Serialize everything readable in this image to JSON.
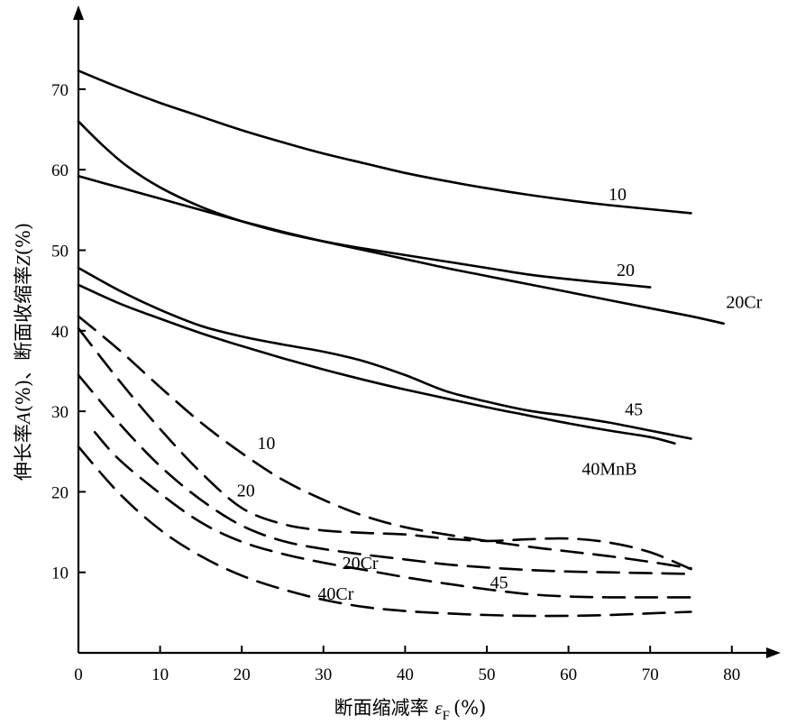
{
  "chart_data": {
    "type": "line",
    "xlabel_text": "断面缩减率 ",
    "xlabel_symbol": "ε",
    "xlabel_sub": "F",
    "xlabel_unit": "(%)",
    "ylabel_a": "伸长率",
    "ylabel_a_sym": "A",
    "ylabel_mid": "(%)、断面收缩率",
    "ylabel_z_sym": "Z",
    "ylabel_end": "(%)",
    "xlim": [
      0,
      85
    ],
    "ylim": [
      0,
      77
    ],
    "x_ticks": [
      0,
      10,
      20,
      30,
      40,
      50,
      60,
      70,
      80
    ],
    "y_ticks": [
      10,
      20,
      30,
      40,
      50,
      60,
      70
    ],
    "grid": false,
    "series": [
      {
        "name": "10",
        "style": "solid",
        "label_at": [
          66,
          57
        ],
        "points": [
          [
            0,
            72.3
          ],
          [
            5,
            70.2
          ],
          [
            10,
            68.3
          ],
          [
            15,
            66.6
          ],
          [
            20,
            64.9
          ],
          [
            25,
            63.4
          ],
          [
            30,
            62.0
          ],
          [
            35,
            60.8
          ],
          [
            40,
            59.6
          ],
          [
            45,
            58.6
          ],
          [
            50,
            57.7
          ],
          [
            55,
            56.9
          ],
          [
            60,
            56.2
          ],
          [
            65,
            55.6
          ],
          [
            70,
            55.1
          ],
          [
            75,
            54.6
          ]
        ]
      },
      {
        "name": "20",
        "style": "solid",
        "label_at": [
          67,
          47.6
        ],
        "points": [
          [
            0,
            66.0
          ],
          [
            3,
            63.0
          ],
          [
            6,
            60.4
          ],
          [
            10,
            57.8
          ],
          [
            15,
            55.4
          ],
          [
            20,
            53.6
          ],
          [
            25,
            52.2
          ],
          [
            30,
            51.1
          ],
          [
            35,
            50.2
          ],
          [
            40,
            49.4
          ],
          [
            45,
            48.6
          ],
          [
            50,
            47.8
          ],
          [
            55,
            47.0
          ],
          [
            60,
            46.4
          ],
          [
            65,
            45.9
          ],
          [
            70,
            45.4
          ]
        ]
      },
      {
        "name": "20Cr",
        "style": "solid",
        "label_at": [
          81.5,
          43.6
        ],
        "points": [
          [
            0,
            59.2
          ],
          [
            5,
            57.8
          ],
          [
            10,
            56.4
          ],
          [
            15,
            55.0
          ],
          [
            20,
            53.6
          ],
          [
            25,
            52.3
          ],
          [
            30,
            51.1
          ],
          [
            35,
            50.0
          ],
          [
            40,
            48.9
          ],
          [
            45,
            47.8
          ],
          [
            50,
            46.8
          ],
          [
            55,
            45.8
          ],
          [
            60,
            44.8
          ],
          [
            65,
            43.8
          ],
          [
            70,
            42.8
          ],
          [
            75,
            41.8
          ],
          [
            79,
            40.9
          ]
        ]
      },
      {
        "name": "45",
        "style": "solid",
        "label_at": [
          68,
          30.3
        ],
        "points": [
          [
            0,
            47.8
          ],
          [
            5,
            45.0
          ],
          [
            10,
            42.6
          ],
          [
            15,
            40.6
          ],
          [
            20,
            39.3
          ],
          [
            25,
            38.3
          ],
          [
            30,
            37.4
          ],
          [
            35,
            36.2
          ],
          [
            40,
            34.5
          ],
          [
            45,
            32.5
          ],
          [
            50,
            31.2
          ],
          [
            55,
            30.1
          ],
          [
            60,
            29.4
          ],
          [
            65,
            28.6
          ],
          [
            70,
            27.6
          ],
          [
            75,
            26.6
          ]
        ]
      },
      {
        "name": "40MnB",
        "style": "solid",
        "label_at": [
          65,
          22.9
        ],
        "points": [
          [
            0,
            45.7
          ],
          [
            5,
            43.4
          ],
          [
            10,
            41.5
          ],
          [
            15,
            39.7
          ],
          [
            20,
            38.1
          ],
          [
            25,
            36.6
          ],
          [
            30,
            35.2
          ],
          [
            35,
            33.9
          ],
          [
            40,
            32.7
          ],
          [
            45,
            31.6
          ],
          [
            50,
            30.5
          ],
          [
            55,
            29.5
          ],
          [
            60,
            28.5
          ],
          [
            65,
            27.6
          ],
          [
            70,
            26.8
          ],
          [
            73,
            26.0
          ]
        ]
      },
      {
        "name": "10",
        "style": "dashed",
        "label_at": [
          23,
          26.1
        ],
        "points": [
          [
            0,
            41.8
          ],
          [
            5,
            37.6
          ],
          [
            10,
            33.0
          ],
          [
            15,
            28.6
          ],
          [
            20,
            24.8
          ],
          [
            25,
            21.5
          ],
          [
            30,
            19.0
          ],
          [
            35,
            17.0
          ],
          [
            40,
            15.6
          ],
          [
            45,
            14.7
          ],
          [
            50,
            13.9
          ],
          [
            55,
            13.2
          ],
          [
            60,
            12.6
          ],
          [
            65,
            12.0
          ],
          [
            70,
            11.3
          ],
          [
            75,
            10.5
          ]
        ]
      },
      {
        "name": "20",
        "style": "dashed",
        "label_at": [
          20.5,
          20.2
        ],
        "points": [
          [
            0,
            40.3
          ],
          [
            5,
            33.8
          ],
          [
            10,
            27.8
          ],
          [
            15,
            22.4
          ],
          [
            20,
            18.0
          ],
          [
            25,
            16.0
          ],
          [
            30,
            15.2
          ],
          [
            35,
            14.9
          ],
          [
            40,
            14.7
          ],
          [
            45,
            14.2
          ],
          [
            50,
            13.9
          ],
          [
            55,
            14.1
          ],
          [
            60,
            14.2
          ],
          [
            65,
            13.7
          ],
          [
            70,
            12.5
          ],
          [
            75,
            10.4
          ]
        ]
      },
      {
        "name": "20Cr",
        "style": "dashed",
        "label_at": [
          34.5,
          11.2
        ],
        "points": [
          [
            0,
            34.5
          ],
          [
            5,
            28.5
          ],
          [
            10,
            23.2
          ],
          [
            15,
            19.0
          ],
          [
            20,
            15.8
          ],
          [
            25,
            13.9
          ],
          [
            30,
            12.9
          ],
          [
            35,
            12.2
          ],
          [
            40,
            11.6
          ],
          [
            45,
            11.0
          ],
          [
            50,
            10.6
          ],
          [
            55,
            10.3
          ],
          [
            60,
            10.1
          ],
          [
            65,
            10.0
          ],
          [
            70,
            9.9
          ],
          [
            75,
            9.8
          ]
        ]
      },
      {
        "name": "45",
        "style": "dashed",
        "label_at": [
          51.5,
          8.8
        ],
        "points": [
          [
            2,
            27.4
          ],
          [
            5,
            24.0
          ],
          [
            10,
            19.8
          ],
          [
            15,
            16.2
          ],
          [
            20,
            13.8
          ],
          [
            25,
            12.3
          ],
          [
            30,
            11.2
          ],
          [
            35,
            10.3
          ],
          [
            40,
            9.4
          ],
          [
            45,
            8.6
          ],
          [
            50,
            7.9
          ],
          [
            55,
            7.3
          ],
          [
            60,
            7.0
          ],
          [
            65,
            6.9
          ],
          [
            70,
            6.9
          ],
          [
            75,
            6.9
          ]
        ]
      },
      {
        "name": "40Cr",
        "style": "dashed",
        "label_at": [
          31.5,
          7.4
        ],
        "points": [
          [
            0,
            25.6
          ],
          [
            5,
            19.8
          ],
          [
            10,
            15.3
          ],
          [
            15,
            12.0
          ],
          [
            20,
            9.6
          ],
          [
            25,
            7.9
          ],
          [
            30,
            6.6
          ],
          [
            35,
            5.7
          ],
          [
            40,
            5.2
          ],
          [
            45,
            4.9
          ],
          [
            50,
            4.7
          ],
          [
            55,
            4.6
          ],
          [
            60,
            4.6
          ],
          [
            65,
            4.7
          ],
          [
            70,
            4.9
          ],
          [
            75,
            5.1
          ]
        ]
      }
    ]
  }
}
